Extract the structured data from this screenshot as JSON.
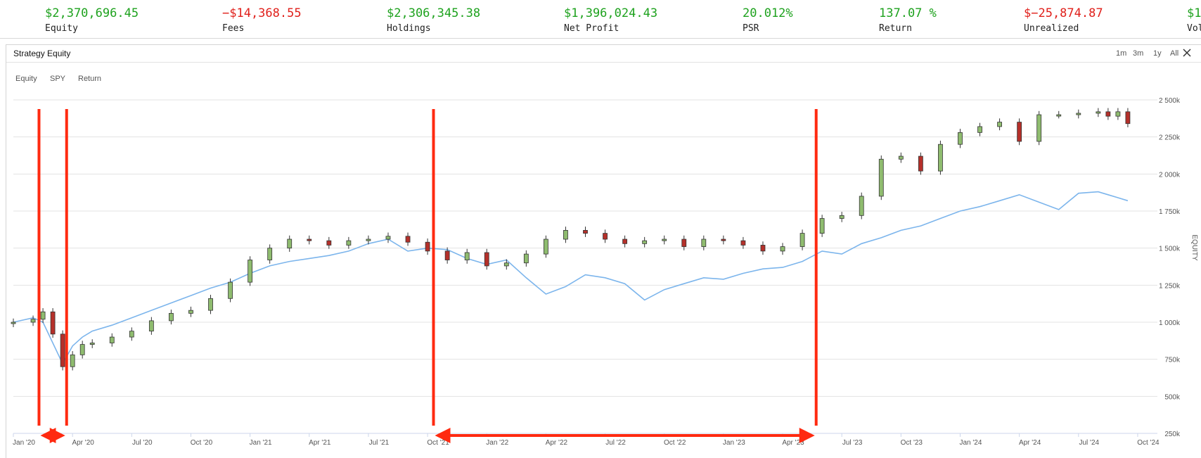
{
  "stats": [
    {
      "value": "$2,370,696.45",
      "label": "Equity",
      "color": "#1ea21e"
    },
    {
      "value": "−$14,368.55",
      "label": "Fees",
      "color": "#e0201b"
    },
    {
      "value": "$2,306,345.38",
      "label": "Holdings",
      "color": "#1ea21e"
    },
    {
      "value": "$1,396,024.43",
      "label": "Net Profit",
      "color": "#1ea21e"
    },
    {
      "value": "20.012%",
      "label": "PSR",
      "color": "#1ea21e"
    },
    {
      "value": "137.07 %",
      "label": "Return",
      "color": "#1ea21e"
    },
    {
      "value": "$−25,874.87",
      "label": "Unrealized",
      "color": "#e0201b"
    },
    {
      "value": "$1",
      "label": "Vol",
      "color": "#1ea21e"
    }
  ],
  "panel": {
    "title": "Strategy Equity",
    "ranges": [
      "1m",
      "3m",
      "1y",
      "All"
    ],
    "series_toggles": [
      "Equity",
      "SPY",
      "Return"
    ]
  },
  "chart_data": {
    "type": "line",
    "title": "Strategy Equity",
    "ylabel": "EQUITY",
    "ylim": [
      250,
      2500
    ],
    "yticks": [
      250,
      500,
      750,
      1000,
      1250,
      1500,
      1750,
      2000,
      2250,
      2500
    ],
    "ytick_labels": [
      "250k",
      "500k",
      "750k",
      "1 000k",
      "1 250k",
      "1 500k",
      "1 750k",
      "2 000k",
      "2 250k",
      "2 500k"
    ],
    "xlim": [
      0,
      58
    ],
    "xticks": [
      0,
      3,
      6,
      9,
      12,
      15,
      18,
      21,
      24,
      27,
      30,
      33,
      36,
      39,
      42,
      45,
      48,
      51,
      54,
      57
    ],
    "xtick_labels": [
      "Jan '20",
      "Apr '20",
      "Jul '20",
      "Oct '20",
      "Jan '21",
      "Apr '21",
      "Jul '21",
      "Oct '21",
      "Jan '22",
      "Apr '22",
      "Jul '22",
      "Oct '22",
      "Jan '23",
      "Apr '23",
      "Jul '23",
      "Oct '23",
      "Jan '24",
      "Apr '24",
      "Jul '24",
      "Oct '24"
    ],
    "series": [
      {
        "type": "candlestick",
        "color_up": "#8fbc6f",
        "color_down": "#b5302a",
        "x": [
          0,
          1,
          1.5,
          2,
          2.5,
          3,
          3.5,
          4,
          5,
          6,
          7,
          8,
          9,
          10,
          11,
          12,
          13,
          14,
          15,
          16,
          17,
          18,
          19,
          20,
          21,
          22,
          23,
          24,
          25,
          26,
          27,
          28,
          29,
          30,
          31,
          32,
          33,
          34,
          35,
          36,
          37,
          38,
          39,
          40,
          41,
          42,
          43,
          44,
          45,
          46,
          47,
          48,
          49,
          50,
          51,
          52,
          53,
          54,
          55,
          55.5,
          56,
          56.5
        ],
        "values": [
          1000,
          1020,
          1070,
          920,
          700,
          780,
          850,
          860,
          900,
          940,
          1010,
          1060,
          1080,
          1160,
          1270,
          1420,
          1500,
          1560,
          1550,
          1520,
          1550,
          1560,
          1580,
          1540,
          1480,
          1420,
          1470,
          1380,
          1400,
          1460,
          1560,
          1620,
          1600,
          1560,
          1530,
          1550,
          1560,
          1510,
          1560,
          1550,
          1520,
          1480,
          1510,
          1600,
          1700,
          1720,
          1850,
          2100,
          2120,
          2020,
          2200,
          2280,
          2320,
          2350,
          2220,
          2400,
          2400,
          2410,
          2420,
          2390,
          2420,
          2340
        ],
        "name": ""
      },
      {
        "type": "line",
        "color": "#7cb5ec",
        "x": [
          0,
          1,
          1.5,
          2,
          2.5,
          3,
          3.5,
          4,
          5,
          6,
          7,
          8,
          9,
          10,
          11,
          12,
          13,
          14,
          15,
          16,
          17,
          18,
          19,
          20,
          21,
          22,
          23,
          24,
          25,
          26,
          27,
          28,
          29,
          30,
          31,
          32,
          33,
          34,
          35,
          36,
          37,
          38,
          39,
          40,
          41,
          42,
          43,
          44,
          45,
          46,
          47,
          48,
          49,
          50,
          51,
          52,
          53,
          54,
          55,
          55.5,
          56,
          56.5
        ],
        "values": [
          1000,
          1030,
          1000,
          860,
          720,
          840,
          900,
          940,
          980,
          1030,
          1080,
          1130,
          1180,
          1230,
          1270,
          1330,
          1380,
          1410,
          1430,
          1450,
          1480,
          1530,
          1560,
          1480,
          1500,
          1490,
          1430,
          1390,
          1420,
          1300,
          1190,
          1240,
          1320,
          1300,
          1260,
          1150,
          1220,
          1260,
          1300,
          1290,
          1330,
          1360,
          1370,
          1410,
          1480,
          1460,
          1530,
          1570,
          1620,
          1650,
          1700,
          1750,
          1780,
          1820,
          1860,
          1810,
          1760,
          1870,
          1880,
          1860,
          1840,
          1820
        ],
        "name": ""
      }
    ],
    "annotations": [
      {
        "type": "vline",
        "x": 1.3,
        "color": "#ff2a10"
      },
      {
        "type": "vline",
        "x": 2.7,
        "color": "#ff2a10"
      },
      {
        "type": "vline",
        "x": 21.3,
        "color": "#ff2a10"
      },
      {
        "type": "vline",
        "x": 40.7,
        "color": "#ff2a10"
      },
      {
        "type": "double-arrow",
        "x0": 1.3,
        "x1": 2.7,
        "color": "#ff2a10"
      },
      {
        "type": "double-arrow",
        "x0": 21.3,
        "x1": 40.7,
        "color": "#ff2a10"
      }
    ],
    "grid": true,
    "legend": "none"
  }
}
